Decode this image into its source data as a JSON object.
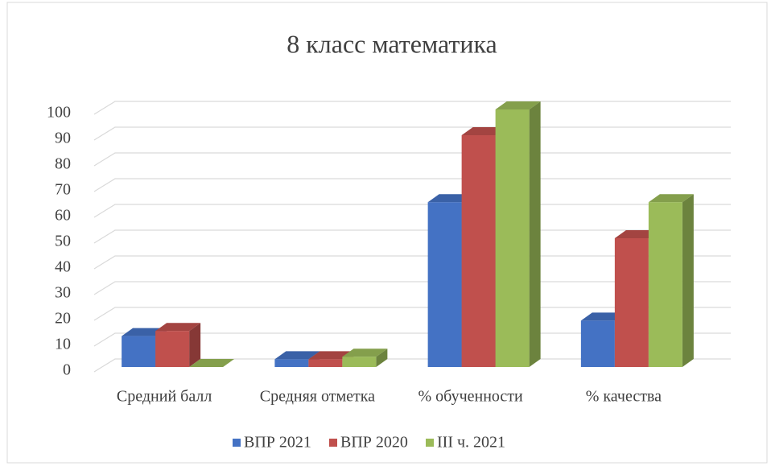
{
  "chart_data": {
    "type": "bar3d",
    "title": "8 класс математика",
    "categories": [
      "Средний балл",
      "Средняя отметка",
      "% обученности",
      "% качества"
    ],
    "series": [
      {
        "name": "ВПР 2021",
        "color": "#4472c4",
        "values": [
          12,
          3,
          64,
          18
        ]
      },
      {
        "name": "ВПР 2020",
        "color": "#c0504d",
        "values": [
          14,
          3,
          90,
          50
        ]
      },
      {
        "name": "III ч. 2021",
        "color": "#9bbb59",
        "values": [
          0,
          4,
          100,
          64
        ]
      }
    ],
    "ylim": [
      0,
      100
    ],
    "yticks": [
      0,
      10,
      20,
      30,
      40,
      50,
      60,
      70,
      80,
      90,
      100
    ],
    "grid": true,
    "legend": "bottom"
  }
}
